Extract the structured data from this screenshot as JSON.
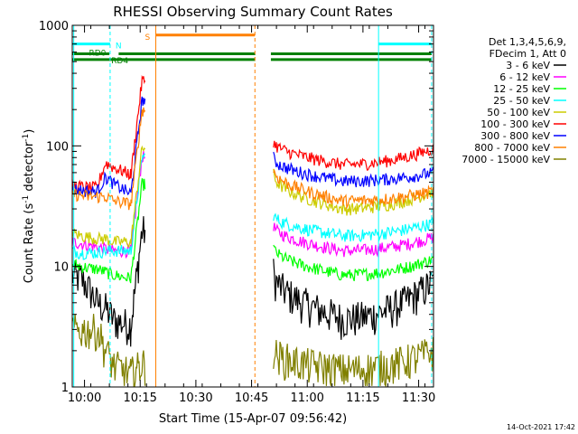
{
  "chart_data": {
    "type": "line",
    "title": "RHESSI Observing Summary Count Rates",
    "xlabel": "Start Time (15-Apr-07 09:56:42)",
    "ylabel_main": "Count Rate (s",
    "ylabel_sup1": "-1",
    "ylabel_mid": " detector",
    "ylabel_sup2": "-1",
    "ylabel_end": ")",
    "yscale": "log",
    "ylim": [
      1,
      1000
    ],
    "xlim_minutes_after_0956": [
      0,
      97.3
    ],
    "x_ticks": [
      {
        "label": "10:00",
        "t": 3.3
      },
      {
        "label": "10:15",
        "t": 18.3
      },
      {
        "label": "10:30",
        "t": 33.3
      },
      {
        "label": "10:45",
        "t": 48.3
      },
      {
        "label": "11:00",
        "t": 63.3
      },
      {
        "label": "11:15",
        "t": 78.3
      },
      {
        "label": "11:30",
        "t": 93.3
      }
    ],
    "y_ticks": [
      {
        "label": "1",
        "v": 1
      },
      {
        "label": "10",
        "v": 10
      },
      {
        "label": "100",
        "v": 100
      },
      {
        "label": "1000",
        "v": 1000
      }
    ],
    "legend_header": [
      "Det 1,3,4,5,6,9,",
      "FDecim 1, Att 0"
    ],
    "series": [
      {
        "name": "3 - 6 keV",
        "color": "#000000",
        "pre": [
          8.5,
          8,
          6.5,
          5,
          4.5,
          3.6,
          3.4,
          3.3
        ],
        "post_start": 9,
        "post_min": 3.7,
        "post_end": 7.5
      },
      {
        "name": "6 - 12 keV",
        "color": "#ff00ff",
        "pre": [
          16,
          15.5,
          15,
          14.5,
          14,
          13.5,
          13.5,
          13.5
        ],
        "post_start": 22,
        "post_min": 13.5,
        "post_end": 17.5
      },
      {
        "name": "12 - 25 keV",
        "color": "#00ff00",
        "pre": [
          10.5,
          10,
          9.7,
          9.5,
          9,
          8.5,
          8.2,
          8
        ],
        "post_start": 14.5,
        "post_min": 8.5,
        "post_end": 11.5
      },
      {
        "name": "25 - 50 keV",
        "color": "#00ffff",
        "pre": [
          13.5,
          13,
          13,
          13,
          13.5,
          13.5,
          13.5,
          13.5
        ],
        "post_start": 27,
        "post_min": 18,
        "post_end": 23
      },
      {
        "name": "50 - 100 keV",
        "color": "#cccc00",
        "pre": [
          19,
          18,
          17.5,
          17,
          17,
          16,
          16,
          16
        ],
        "post_start": 58,
        "post_min": 30,
        "post_end": 42
      },
      {
        "name": "100 - 300 keV",
        "color": "#ff0000",
        "pre": [
          47,
          46,
          45,
          45,
          72,
          66,
          62,
          58
        ],
        "post_start": 110,
        "post_min": 70,
        "post_end": 95
      },
      {
        "name": "300 - 800 keV",
        "color": "#0000ff",
        "pre": [
          44,
          43,
          42,
          42,
          55,
          48,
          44,
          40
        ],
        "post_start": 80,
        "post_min": 51,
        "post_end": 60
      },
      {
        "name": "800 - 7000 keV",
        "color": "#ff8000",
        "pre": [
          40,
          39,
          38,
          38,
          38,
          35,
          34,
          33
        ],
        "post_start": 64,
        "post_min": 35,
        "post_end": 42
      },
      {
        "name": "7000 - 15000 keV",
        "color": "#808000",
        "pre": [
          3,
          3,
          3,
          3,
          2,
          1.5,
          1.4,
          1.3
        ],
        "post_start": 2,
        "post_min": 1.4,
        "post_end": 2
      }
    ],
    "segments": {
      "pre_end_t": 15.8,
      "flare_t": 18.8,
      "gap_start_t": 49.8,
      "post_start_t": 54.2,
      "post_min_t": 73,
      "end_t": 97.3
    },
    "flags": [
      {
        "label": "N",
        "color": "#00ffff",
        "v": 700,
        "spans": [
          [
            0,
            10.2
          ],
          [
            82.5,
            96.8
          ]
        ]
      },
      {
        "label": "S",
        "color": "#ff8000",
        "v": 830,
        "spans": [
          [
            22.5,
            49.2
          ]
        ]
      },
      {
        "label": "RD0",
        "color": "#008000",
        "v": 580,
        "spans": [
          [
            0,
            10
          ],
          [
            12.5,
            49.3
          ],
          [
            53.5,
            96.8
          ]
        ]
      },
      {
        "label": "RD4",
        "color": "#008000",
        "v": 520,
        "spans": [
          [
            0,
            49.3
          ],
          [
            53.5,
            96.8
          ]
        ]
      }
    ],
    "vlines": [
      {
        "t": 0.4,
        "color": "#00ffff",
        "dash": false
      },
      {
        "t": 10.2,
        "color": "#00ffff",
        "dash": true
      },
      {
        "t": 22.5,
        "color": "#ff8000",
        "dash": false
      },
      {
        "t": 49.2,
        "color": "#ff8000",
        "dash": true
      },
      {
        "t": 82.5,
        "color": "#00ffff",
        "dash": false
      },
      {
        "t": 96.8,
        "color": "#00ffff",
        "dash": true
      }
    ],
    "footer_date": "14-Oct-2021 17:42"
  }
}
